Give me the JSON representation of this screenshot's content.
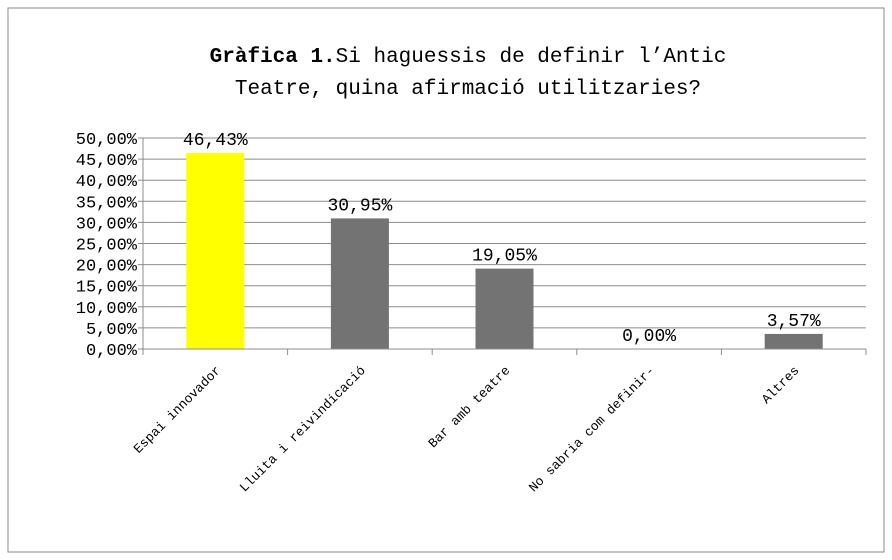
{
  "chart_data": {
    "type": "bar",
    "title": {
      "bold": "Gràfica 1.",
      "line1": "Si haguessis de definir l’Antic",
      "line2": "Teatre, quina afirmació utilitzaries?"
    },
    "categories": [
      "Espai innovador",
      "Lluita i reivindicació",
      "Bar amb teatre",
      "No sabria com definir-",
      "Altres"
    ],
    "values": [
      46.43,
      30.95,
      19.05,
      0,
      3.57
    ],
    "value_labels": [
      "46,43%",
      "30,95%",
      "19,05%",
      "0,00%",
      "3,57%"
    ],
    "colors": [
      "#ffff00",
      "#737373",
      "#737373",
      "#737373",
      "#737373"
    ],
    "ylim": [
      0,
      50
    ],
    "yticks": [
      {
        "value": 0,
        "label": "0,00%"
      },
      {
        "value": 5,
        "label": "5,00%"
      },
      {
        "value": 10,
        "label": "10,00%"
      },
      {
        "value": 15,
        "label": "15,00%"
      },
      {
        "value": 20,
        "label": "20,00%"
      },
      {
        "value": 25,
        "label": "25,00%"
      },
      {
        "value": 30,
        "label": "30,00%"
      },
      {
        "value": 35,
        "label": "35,00%"
      },
      {
        "value": 40,
        "label": "40,00%"
      },
      {
        "value": 45,
        "label": "45,00%"
      },
      {
        "value": 50,
        "label": "50,00%"
      }
    ],
    "grid": true
  }
}
